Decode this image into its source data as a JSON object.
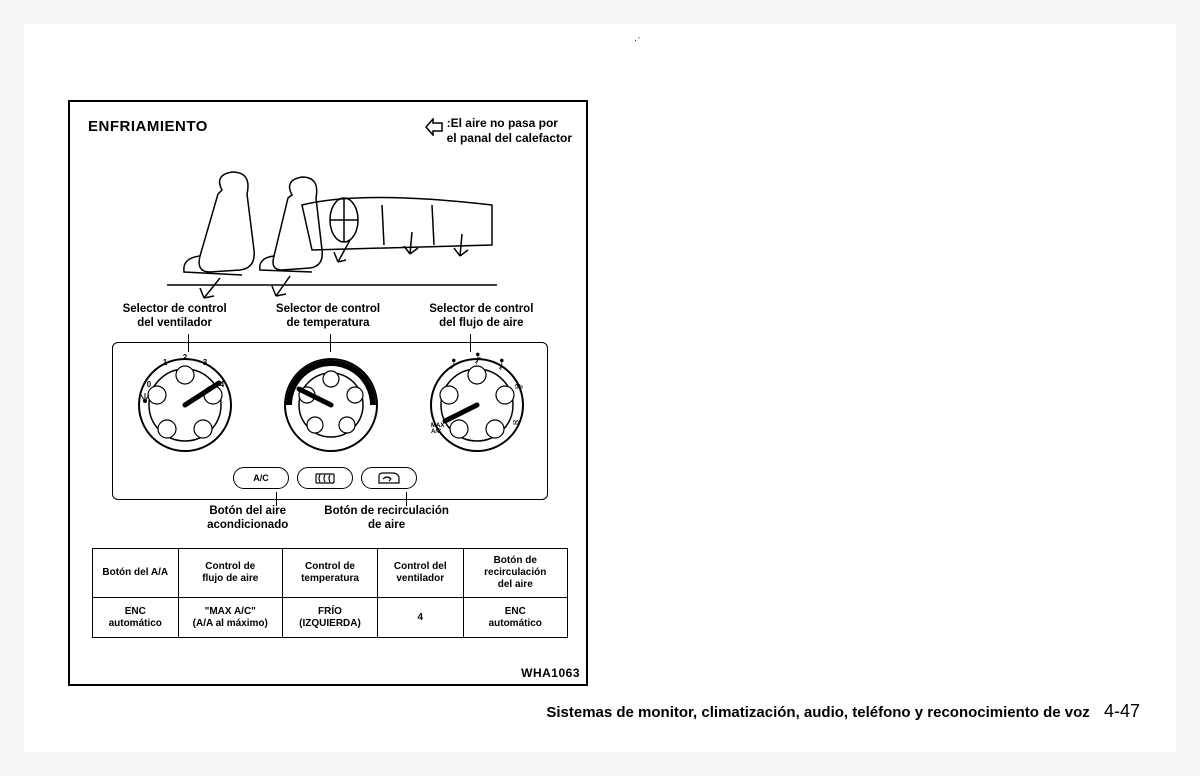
{
  "figure": {
    "title": "ENFRIAMIENTO",
    "arrow_note_line1": ":El aire no pasa por",
    "arrow_note_line2": "el panal del calefactor",
    "code": "WHA1063",
    "border_color": "#000000",
    "background": "#ffffff"
  },
  "dial_labels": {
    "fan": {
      "line1": "Selector de control",
      "line2": "del ventilador"
    },
    "temp": {
      "line1": "Selector de control",
      "line2": "de temperatura"
    },
    "flow": {
      "line1": "Selector de control",
      "line2": "del flujo de aire"
    }
  },
  "panel": {
    "fan_marks": [
      "0",
      "1",
      "2",
      "3",
      "4"
    ],
    "ac_button_label": "A/C",
    "max_ac_label": "MAX\nA/C"
  },
  "button_labels": {
    "ac": {
      "line1": "Botón del aire",
      "line2": "acondicionado"
    },
    "recirc": {
      "line1": "Botón de recirculación",
      "line2": "de aire"
    }
  },
  "table": {
    "columns": [
      "Botón del A/A",
      "Control de\nflujo de aire",
      "Control de\ntemperatura",
      "Control del\nventilador",
      "Botón de\nrecirculación\ndel aire"
    ],
    "row": [
      "ENC\nautomático",
      "\"MAX A/C\"\n(A/A al máximo)",
      "FRÍO\n(IZQUIERDA)",
      "4",
      "ENC\nautomático"
    ],
    "col_widths_pct": [
      18,
      22,
      20,
      18,
      22
    ]
  },
  "footer": {
    "text": "Sistemas de monitor, climatización, audio, teléfono y reconocimiento de voz",
    "page": "4-47"
  },
  "colors": {
    "page_bg": "#f5f5f3",
    "paper": "#ffffff",
    "ink": "#000000"
  },
  "typography": {
    "title_pt": 15,
    "label_pt": 11.5,
    "table_pt": 10,
    "footer_pt": 15
  }
}
